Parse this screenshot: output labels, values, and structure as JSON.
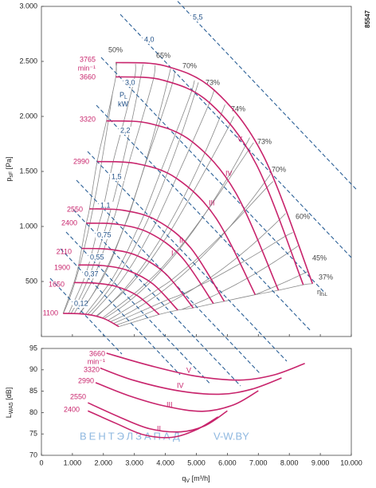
{
  "figure_number": "85547",
  "watermark": [
    "ВЕНТЭЛЗАПАД",
    "V-W.BY"
  ],
  "chart_data": [
    {
      "type": "line",
      "ylabel": {
        "symbol": "p",
        "subscript": "sF",
        "unit": "[Pa]"
      },
      "xlim": [
        0,
        10000
      ],
      "ylim": [
        0,
        3000
      ],
      "yticks": [
        500,
        {
          "value": 1000,
          "label": "1.000"
        },
        {
          "value": 1500,
          "label": "1.500"
        },
        {
          "value": 2000,
          "label": "2.000"
        },
        {
          "value": 2500,
          "label": "2.500"
        },
        {
          "value": 3000,
          "label": "3.000"
        }
      ],
      "speed_unit": "min⁻¹",
      "series": [
        {
          "name": "3765",
          "color": "#c8246c",
          "x": [
            2400,
            3988,
            5575,
            7163,
            8750
          ],
          "values": [
            2490,
            2459,
            2239,
            1642,
            480
          ]
        },
        {
          "name": "3660",
          "color": "#c8246c",
          "x": [
            2400,
            3913,
            5425,
            6938,
            8450
          ],
          "values": [
            2360,
            2330,
            2124,
            1562,
            470
          ]
        },
        {
          "name": "3320",
          "color": "#c8246c",
          "x": [
            2100,
            3488,
            4875,
            6263,
            7650
          ],
          "values": [
            1960,
            1936,
            1768,
            1310,
            420
          ]
        },
        {
          "name": "2990",
          "color": "#c8246c",
          "x": [
            1800,
            3075,
            4350,
            5625,
            6900
          ],
          "values": [
            1590,
            1571,
            1439,
            1079,
            380
          ]
        },
        {
          "name": "2550",
          "color": "#c8246c",
          "x": [
            1550,
            2638,
            3725,
            4813,
            5900
          ],
          "values": [
            1160,
            1147,
            1055,
            806,
            320
          ]
        },
        {
          "name": "2400",
          "color": "#c8246c",
          "x": [
            1450,
            2475,
            3500,
            4525,
            5550
          ],
          "values": [
            1030,
            1019,
            939,
            722,
            300
          ]
        },
        {
          "name": "2110",
          "color": "#c8246c",
          "x": [
            1300,
            2200,
            3100,
            4000,
            4900
          ],
          "values": [
            800,
            792,
            733,
            572,
            260
          ]
        },
        {
          "name": "1900",
          "color": "#c8246c",
          "x": [
            1200,
            2000,
            2800,
            3600,
            4400
          ],
          "values": [
            650,
            644,
            599,
            477,
            240
          ]
        },
        {
          "name": "1650",
          "color": "#c8246c",
          "x": [
            1050,
            1738,
            2425,
            3113,
            3800
          ],
          "values": [
            490,
            485,
            454,
            368,
            200
          ]
        },
        {
          "name": "1100",
          "color": "#c8246c",
          "x": [
            700,
            1150,
            1600,
            2050,
            2500
          ],
          "values": [
            210,
            208,
            195,
            159,
            90
          ]
        }
      ],
      "region_labels": [
        "V",
        "IV",
        "III",
        "II",
        "I"
      ],
      "power_labels": [
        "0,12",
        "0,37",
        "0,55",
        "0,75",
        "1,1",
        "1,5",
        "2,2",
        "3,0",
        "4,0",
        "5,5"
      ],
      "power_symbol": {
        "symbol": "P",
        "subscript": "L",
        "unit": "kW"
      },
      "efficiency_labels": [
        "50%",
        "65%",
        "70%",
        "73%",
        "74%",
        "73%",
        "70%",
        "60%",
        "45%",
        "37%"
      ],
      "efficiency_symbol": {
        "symbol": "η",
        "subscript": "fsL"
      }
    },
    {
      "type": "line",
      "ylabel": {
        "symbol": "L",
        "subscript": "WA5",
        "unit": "[dB]"
      },
      "xlabel": {
        "symbol": "q",
        "subscript": "V",
        "unit": "[m³/h]"
      },
      "xlim": [
        0,
        10000
      ],
      "ylim": [
        70,
        95
      ],
      "xticks": [
        0,
        {
          "value": 1000,
          "label": "1.000"
        },
        {
          "value": 2000,
          "label": "2.000"
        },
        {
          "value": 3000,
          "label": "3.000"
        },
        {
          "value": 4000,
          "label": "4.000"
        },
        {
          "value": 5000,
          "label": "5.000"
        },
        {
          "value": 6000,
          "label": "6.000"
        },
        {
          "value": 7000,
          "label": "7.000"
        },
        {
          "value": 8000,
          "label": "8.000"
        },
        {
          "value": 9000,
          "label": "9.000"
        },
        {
          "value": 10000,
          "label": "10.000"
        }
      ],
      "yticks": [
        70,
        75,
        80,
        85,
        90,
        95
      ],
      "speed_unit": "min⁻¹",
      "series": [
        {
          "name": "3660",
          "color": "#c8246c",
          "x": [
            2100,
            3500,
            5000,
            6400,
            7500,
            8500
          ],
          "values": [
            93.9,
            91.0,
            88.5,
            87.6,
            88.8,
            91.5
          ]
        },
        {
          "name": "3320",
          "color": "#c8246c",
          "x": [
            1900,
            3000,
            4500,
            5800,
            6800,
            7750
          ],
          "values": [
            90.4,
            87.5,
            85.0,
            84.3,
            85.5,
            88.1
          ]
        },
        {
          "name": "2990",
          "color": "#c8246c",
          "x": [
            1750,
            2800,
            4000,
            5200,
            6200,
            7000
          ],
          "values": [
            87.0,
            84.0,
            81.5,
            80.3,
            81.8,
            85.1
          ]
        },
        {
          "name": "2550",
          "color": "#c8246c",
          "x": [
            1500,
            2500,
            3500,
            4500,
            5300,
            6000
          ],
          "values": [
            82.3,
            79.0,
            76.2,
            75.5,
            77.0,
            80.4
          ]
        },
        {
          "name": "2400",
          "color": "#c8246c",
          "x": [
            1500,
            2400,
            3300,
            4200,
            5000,
            5700
          ],
          "values": [
            80.4,
            77.5,
            74.8,
            74.2,
            76.0,
            79.0
          ]
        }
      ],
      "region_labels": [
        "V",
        "IV",
        "III",
        "II"
      ]
    }
  ]
}
